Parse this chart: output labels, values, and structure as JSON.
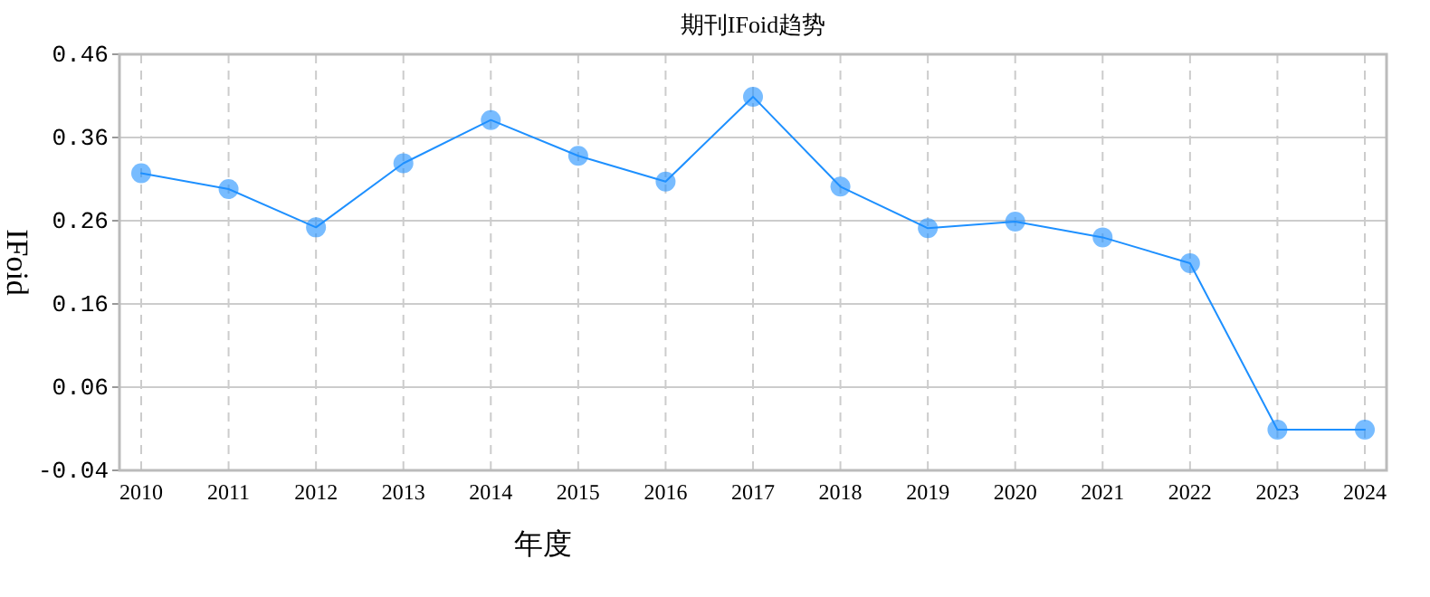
{
  "chart_data": {
    "type": "line",
    "title": "期刊IFoid趋势",
    "xlabel": "年度",
    "ylabel": "IFoid",
    "categories": [
      "2010",
      "2011",
      "2012",
      "2013",
      "2014",
      "2015",
      "2016",
      "2017",
      "2018",
      "2019",
      "2020",
      "2021",
      "2022",
      "2023",
      "2024"
    ],
    "series": [
      {
        "color": "#1e90ff",
        "values": [
          0.317,
          0.298,
          0.252,
          0.329,
          0.381,
          0.338,
          0.307,
          0.409,
          0.301,
          0.251,
          0.259,
          0.24,
          0.209,
          0.009,
          0.009
        ]
      }
    ],
    "ylim": [
      -0.04,
      0.46
    ],
    "yticks": [
      -0.04,
      0.06,
      0.16,
      0.26,
      0.36,
      0.46
    ],
    "grid": true,
    "marker": "circle",
    "line_style": "solid"
  }
}
